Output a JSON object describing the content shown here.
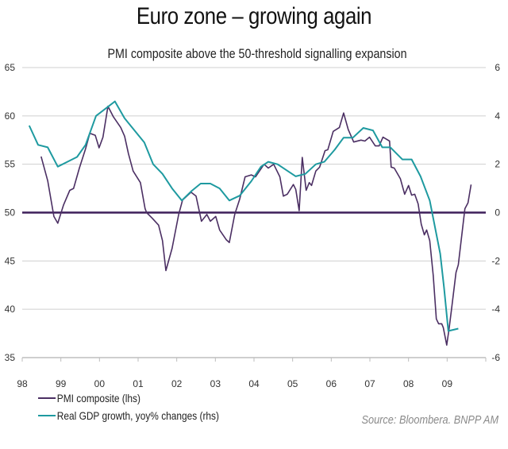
{
  "title": "Euro zone – growing again",
  "source": "Source: Bloombera. BNPP AM",
  "colors": {
    "pmi": "#4b2f63",
    "gdp": "#1e9aa0",
    "threshold": "#3d1f5a",
    "grid": "#cfcfcf"
  },
  "chart_data": {
    "type": "line",
    "title": "PMI composite above the 50-threshold signalling expansion",
    "xlabel": "",
    "ylabel": "",
    "x_ticks": [
      "98",
      "99",
      "00",
      "01",
      "02",
      "03",
      "04",
      "05",
      "06",
      "07",
      "08",
      "09"
    ],
    "xlim": [
      1998,
      2010
    ],
    "y_left": {
      "ticks": [
        "65",
        "60",
        "55",
        "50",
        "45",
        "40",
        "35"
      ],
      "ylim": [
        35,
        65
      ]
    },
    "y_right": {
      "ticks": [
        "6",
        "4",
        "2",
        "0",
        "-2",
        "-4",
        "-6"
      ],
      "ylim": [
        -6,
        6
      ]
    },
    "grid": true,
    "reference_line": {
      "axis": "left",
      "value": 50
    },
    "legend_position": "bottom-left",
    "series": [
      {
        "name": "PMI composite (lhs)",
        "axis": "left",
        "x": [
          1998.49,
          1998.66,
          1998.82,
          1998.92,
          1999.07,
          1999.23,
          1999.33,
          1999.48,
          1999.64,
          1999.75,
          1999.89,
          1999.99,
          2000.09,
          2000.22,
          2000.36,
          2000.55,
          2000.65,
          2000.75,
          2000.87,
          2001.06,
          2001.18,
          2001.22,
          2001.37,
          2001.53,
          2001.63,
          2001.72,
          2001.88,
          2002.05,
          2002.15,
          2002.37,
          2002.5,
          2002.64,
          2002.78,
          2002.87,
          2003.01,
          2003.11,
          2003.28,
          2003.36,
          2003.5,
          2003.63,
          2003.77,
          2003.93,
          2004.04,
          2004.26,
          2004.37,
          2004.51,
          2004.67,
          2004.76,
          2004.86,
          2005.02,
          2005.08,
          2005.17,
          2005.25,
          2005.35,
          2005.43,
          2005.49,
          2005.6,
          2005.7,
          2005.84,
          2005.91,
          2006.05,
          2006.21,
          2006.32,
          2006.44,
          2006.58,
          2006.77,
          2006.87,
          2006.99,
          2007.14,
          2007.24,
          2007.34,
          2007.51,
          2007.55,
          2007.63,
          2007.79,
          2007.9,
          2008.0,
          2008.08,
          2008.16,
          2008.25,
          2008.33,
          2008.41,
          2008.47,
          2008.55,
          2008.64,
          2008.72,
          2008.78,
          2008.86,
          2008.9,
          2008.99,
          2009.05,
          2009.11,
          2009.23,
          2009.29,
          2009.46,
          2009.54,
          2009.62
        ],
        "values": [
          55.8,
          53.3,
          49.6,
          48.9,
          50.8,
          52.3,
          52.5,
          54.6,
          56.6,
          58.2,
          58.0,
          56.7,
          57.8,
          61.0,
          59.9,
          58.8,
          57.9,
          56.1,
          54.3,
          53.1,
          50.4,
          50.0,
          49.4,
          48.7,
          47.1,
          44.0,
          46.3,
          49.8,
          51.3,
          52.1,
          51.7,
          49.1,
          49.8,
          49.1,
          49.6,
          48.2,
          47.2,
          46.9,
          49.8,
          51.4,
          53.7,
          53.9,
          53.7,
          55.0,
          54.6,
          55.0,
          53.7,
          51.7,
          51.9,
          52.9,
          52.4,
          50.2,
          55.7,
          52.3,
          53.1,
          52.8,
          54.3,
          54.7,
          56.4,
          56.5,
          58.4,
          58.8,
          60.3,
          58.6,
          57.3,
          57.5,
          57.4,
          57.8,
          56.9,
          56.9,
          57.8,
          57.4,
          54.7,
          54.6,
          53.5,
          51.9,
          52.8,
          51.8,
          51.9,
          50.9,
          48.8,
          47.7,
          48.2,
          47.1,
          43.5,
          39.0,
          38.5,
          38.5,
          38.1,
          36.3,
          38.0,
          39.9,
          43.8,
          44.6,
          50.4,
          51.0,
          52.9
        ]
      },
      {
        "name": "Real GDP growth, yoy% changes (rhs)",
        "axis": "right",
        "x": [
          1998.18,
          1998.41,
          1998.66,
          1998.92,
          1999.17,
          1999.42,
          1999.64,
          1999.91,
          2000.4,
          2000.65,
          2001.16,
          2001.39,
          2001.63,
          2001.88,
          2002.13,
          2002.39,
          2002.62,
          2002.87,
          2003.11,
          2003.36,
          2003.63,
          2003.93,
          2004.18,
          2004.37,
          2004.61,
          2005.08,
          2005.33,
          2005.6,
          2005.82,
          2006.09,
          2006.32,
          2006.56,
          2006.83,
          2007.08,
          2007.32,
          2007.53,
          2007.84,
          2008.08,
          2008.31,
          2008.55,
          2008.82,
          2008.92,
          2009.03,
          2009.29
        ],
        "values": [
          3.6,
          2.8,
          2.7,
          1.9,
          2.1,
          2.3,
          2.8,
          4.0,
          4.6,
          3.9,
          2.9,
          2.0,
          1.6,
          1.0,
          0.5,
          0.9,
          1.2,
          1.2,
          1.0,
          0.5,
          0.7,
          1.3,
          1.9,
          2.1,
          2.0,
          1.5,
          1.6,
          2.0,
          2.1,
          2.6,
          3.1,
          3.1,
          3.5,
          3.4,
          2.7,
          2.7,
          2.2,
          2.2,
          1.5,
          0.5,
          -1.7,
          -3.1,
          -4.9,
          -4.8
        ]
      }
    ]
  }
}
